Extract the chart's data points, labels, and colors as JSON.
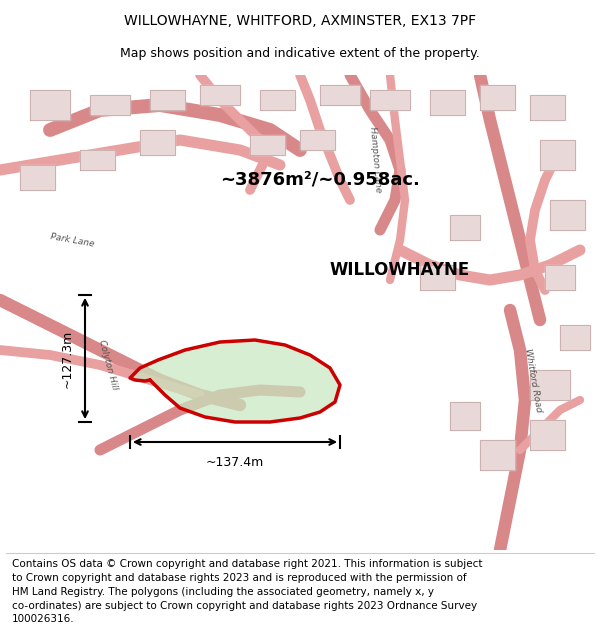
{
  "title_line1": "WILLOWHAYNE, WHITFORD, AXMINSTER, EX13 7PF",
  "title_line2": "Map shows position and indicative extent of the property.",
  "property_label": "WILLOWHAYNE",
  "area_label": "~3876m²/~0.958ac.",
  "width_label": "~137.4m",
  "height_label": "~127.3m",
  "footer_lines": [
    "Contains OS data © Crown copyright and database right 2021. This information is subject",
    "to Crown copyright and database rights 2023 and is reproduced with the permission of",
    "HM Land Registry. The polygons (including the associated geometry, namely x, y",
    "co-ordinates) are subject to Crown copyright and database rights 2023 Ordnance Survey",
    "100026316."
  ],
  "map_bg": "#f5eeee",
  "road_color": "#e8a0a0",
  "building_color": "#e8d8d8",
  "property_fill": "#c8e8c0",
  "property_outline": "#cc0000",
  "title_fontsize": 10,
  "subtitle_fontsize": 9,
  "footer_fontsize": 7.5,
  "road_label_color": "#555555",
  "road_label_fontsize": 6.5
}
